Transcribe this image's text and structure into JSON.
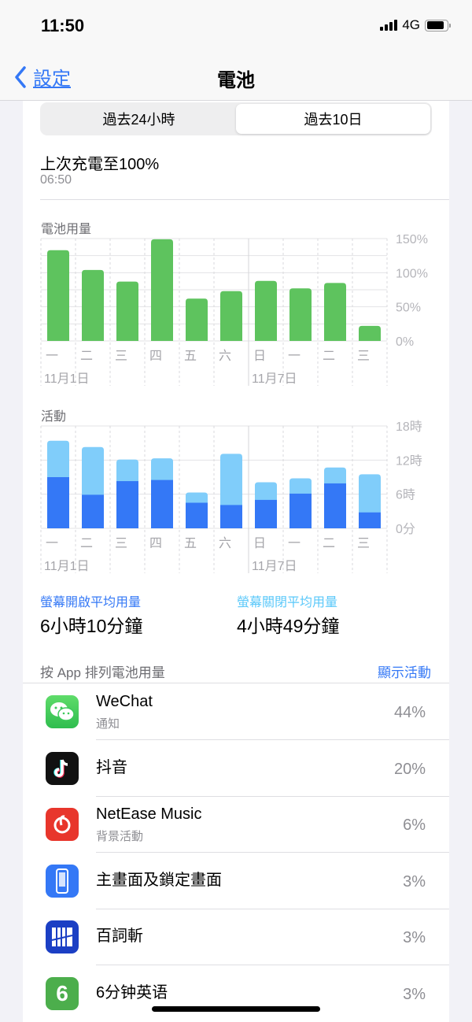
{
  "status": {
    "time": "11:50",
    "network": "4G",
    "battery_level": 0.85
  },
  "nav": {
    "back_label": "設定",
    "title": "電池"
  },
  "segments": [
    {
      "label": "過去24小時",
      "selected": false
    },
    {
      "label": "過去10日",
      "selected": true
    }
  ],
  "last_charge": {
    "title": "上次充電至100%",
    "time": "06:50"
  },
  "chart_data": [
    {
      "type": "bar",
      "title": "電池用量",
      "categories": [
        "一",
        "二",
        "三",
        "四",
        "五",
        "六",
        "日",
        "一",
        "二",
        "三"
      ],
      "dates": [
        "11月1日",
        "11月7日"
      ],
      "yticks": [
        "0%",
        "50%",
        "100%",
        "150%"
      ],
      "ylim": [
        0,
        150
      ],
      "values": [
        133,
        104,
        87,
        149,
        62,
        73,
        88,
        77,
        85,
        22
      ],
      "color": "#5ec35e",
      "grid": true
    },
    {
      "type": "bar",
      "stacked": true,
      "title": "活動",
      "categories": [
        "一",
        "二",
        "三",
        "四",
        "五",
        "六",
        "日",
        "一",
        "二",
        "三"
      ],
      "dates": [
        "11月1日",
        "11月7日"
      ],
      "yticks": [
        "0分",
        "6時",
        "12時",
        "18時"
      ],
      "ylim": [
        0,
        18
      ],
      "series": [
        {
          "values": [
            9.0,
            5.9,
            8.3,
            8.5,
            4.5,
            4.1,
            5.0,
            6.1,
            7.9,
            2.8
          ],
          "color": "#3478f6"
        },
        {
          "values": [
            6.4,
            8.4,
            3.8,
            3.8,
            1.8,
            9.0,
            3.1,
            2.7,
            2.8,
            6.7
          ],
          "color": "#80cdfa"
        }
      ],
      "grid": true
    }
  ],
  "averages": {
    "screen_on_label": "螢幕開啟平均用量",
    "screen_on_value": "6小時10分鐘",
    "screen_off_label": "螢幕關閉平均用量",
    "screen_off_value": "4小時49分鐘",
    "screen_on_color": "#3478f6",
    "screen_off_color": "#5ac8fa"
  },
  "app_section": {
    "title": "按 App 排列電池用量",
    "action": "顯示活動"
  },
  "apps": [
    {
      "name": "WeChat",
      "sub": "通知",
      "pct": "44%",
      "icon": "wechat-icon"
    },
    {
      "name": "抖音",
      "sub": "",
      "pct": "20%",
      "icon": "douyin-icon"
    },
    {
      "name": "NetEase Music",
      "sub": "背景活動",
      "pct": "6%",
      "icon": "netease-music-icon"
    },
    {
      "name": "主畫面及鎖定畫面",
      "sub": "",
      "pct": "3%",
      "icon": "home-lock-screen-icon"
    },
    {
      "name": "百詞斬",
      "sub": "",
      "pct": "3%",
      "icon": "baicizhan-icon"
    },
    {
      "name": "6分钟英语",
      "sub": "",
      "pct": "3%",
      "icon": "six-minute-english-icon"
    }
  ]
}
